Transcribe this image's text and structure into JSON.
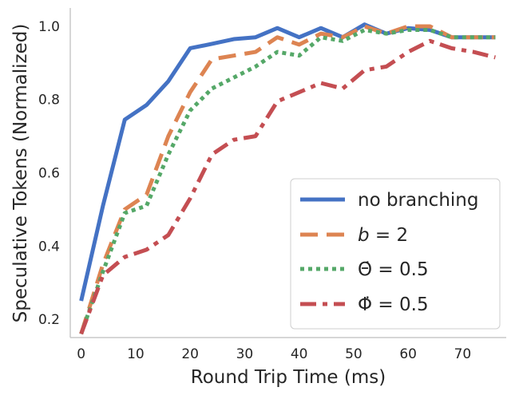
{
  "chart_data": {
    "type": "line",
    "title": "",
    "xlabel": "Round Trip Time (ms)",
    "ylabel": "Speculative Tokens (Normalized)",
    "xlim": [
      -2,
      78
    ],
    "ylim": [
      0.15,
      1.05
    ],
    "xticks": [
      "0",
      "10",
      "20",
      "30",
      "40",
      "50",
      "60",
      "70"
    ],
    "xtick_values": [
      0,
      10,
      20,
      30,
      40,
      50,
      60,
      70
    ],
    "yticks": [
      "0.2",
      "0.4",
      "0.6",
      "0.8",
      "1.0"
    ],
    "ytick_values": [
      0.2,
      0.4,
      0.6,
      0.8,
      1.0
    ],
    "grid": false,
    "legend_position": "lower-right",
    "series": [
      {
        "label_parts": [
          {
            "text": "no branching",
            "italic": false
          }
        ],
        "color": "#4472c4",
        "dash": "solid",
        "x": [
          0,
          4,
          8,
          12,
          16,
          20,
          24,
          28,
          32,
          36,
          40,
          44,
          48,
          52,
          56,
          60,
          64,
          68,
          72,
          76
        ],
        "y": [
          0.25,
          0.51,
          0.745,
          0.785,
          0.85,
          0.94,
          0.952,
          0.965,
          0.97,
          0.995,
          0.97,
          0.995,
          0.97,
          1.005,
          0.98,
          0.995,
          0.99,
          0.97,
          0.97,
          0.97
        ]
      },
      {
        "label_parts": [
          {
            "text": "b",
            "italic": true
          },
          {
            "text": " = 2",
            "italic": false
          }
        ],
        "color": "#dd8452",
        "dash": "dashed",
        "x": [
          0,
          4,
          8,
          12,
          16,
          20,
          24,
          28,
          32,
          36,
          40,
          44,
          48,
          52,
          56,
          60,
          64,
          68,
          72,
          76
        ],
        "y": [
          0.16,
          0.35,
          0.5,
          0.54,
          0.7,
          0.82,
          0.91,
          0.92,
          0.93,
          0.97,
          0.95,
          0.98,
          0.97,
          1.0,
          0.98,
          1.0,
          1.0,
          0.97,
          0.97,
          0.97
        ]
      },
      {
        "label_parts": [
          {
            "text": "Θ̇ = 0.5",
            "italic": false
          }
        ],
        "color": "#55a868",
        "dash": "dotted",
        "x": [
          0,
          4,
          8,
          12,
          16,
          20,
          24,
          28,
          32,
          36,
          40,
          44,
          48,
          52,
          56,
          60,
          64,
          68,
          72,
          76
        ],
        "y": [
          0.16,
          0.33,
          0.49,
          0.51,
          0.65,
          0.77,
          0.83,
          0.86,
          0.89,
          0.93,
          0.92,
          0.97,
          0.96,
          0.99,
          0.98,
          0.99,
          0.99,
          0.97,
          0.97,
          0.97
        ]
      },
      {
        "label_parts": [
          {
            "text": "Φ̇ = 0.5",
            "italic": false
          }
        ],
        "color": "#c44e52",
        "dash": "dashdot",
        "x": [
          0,
          4,
          8,
          12,
          16,
          20,
          24,
          28,
          32,
          36,
          40,
          44,
          48,
          52,
          56,
          60,
          64,
          68,
          72,
          76
        ],
        "y": [
          0.16,
          0.32,
          0.37,
          0.39,
          0.43,
          0.53,
          0.65,
          0.69,
          0.7,
          0.795,
          0.82,
          0.845,
          0.83,
          0.88,
          0.89,
          0.93,
          0.96,
          0.94,
          0.93,
          0.915
        ]
      }
    ]
  }
}
